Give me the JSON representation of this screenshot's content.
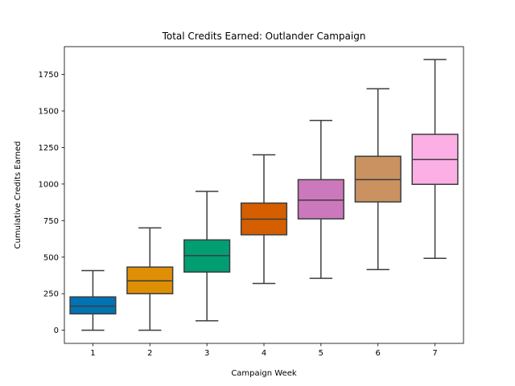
{
  "chart_data": {
    "type": "box",
    "title": "Total Credits Earned: Outlander Campaign",
    "xlabel": "Campaign Week",
    "ylabel": "Cumulative Credits Earned",
    "ylim": [
      -90,
      1940
    ],
    "yticks": [
      0,
      250,
      500,
      750,
      1000,
      1250,
      1500,
      1750
    ],
    "grid": false,
    "categories": [
      "1",
      "2",
      "3",
      "4",
      "5",
      "6",
      "7"
    ],
    "boxes": [
      {
        "category": "1",
        "min": 0,
        "q1": 112,
        "median": 165,
        "q3": 228,
        "max": 408,
        "color": "#0173b2"
      },
      {
        "category": "2",
        "min": 0,
        "q1": 250,
        "median": 338,
        "q3": 432,
        "max": 700,
        "color": "#de8f05"
      },
      {
        "category": "3",
        "min": 65,
        "q1": 398,
        "median": 510,
        "q3": 618,
        "max": 950,
        "color": "#029e73"
      },
      {
        "category": "4",
        "min": 320,
        "q1": 653,
        "median": 760,
        "q3": 870,
        "max": 1200,
        "color": "#d55e00"
      },
      {
        "category": "5",
        "min": 355,
        "q1": 762,
        "median": 890,
        "q3": 1030,
        "max": 1435,
        "color": "#cc78bc"
      },
      {
        "category": "6",
        "min": 415,
        "q1": 878,
        "median": 1030,
        "q3": 1190,
        "max": 1652,
        "color": "#ca9161"
      },
      {
        "category": "7",
        "min": 492,
        "q1": 998,
        "median": 1168,
        "q3": 1340,
        "max": 1852,
        "color": "#fbafe4"
      }
    ]
  }
}
